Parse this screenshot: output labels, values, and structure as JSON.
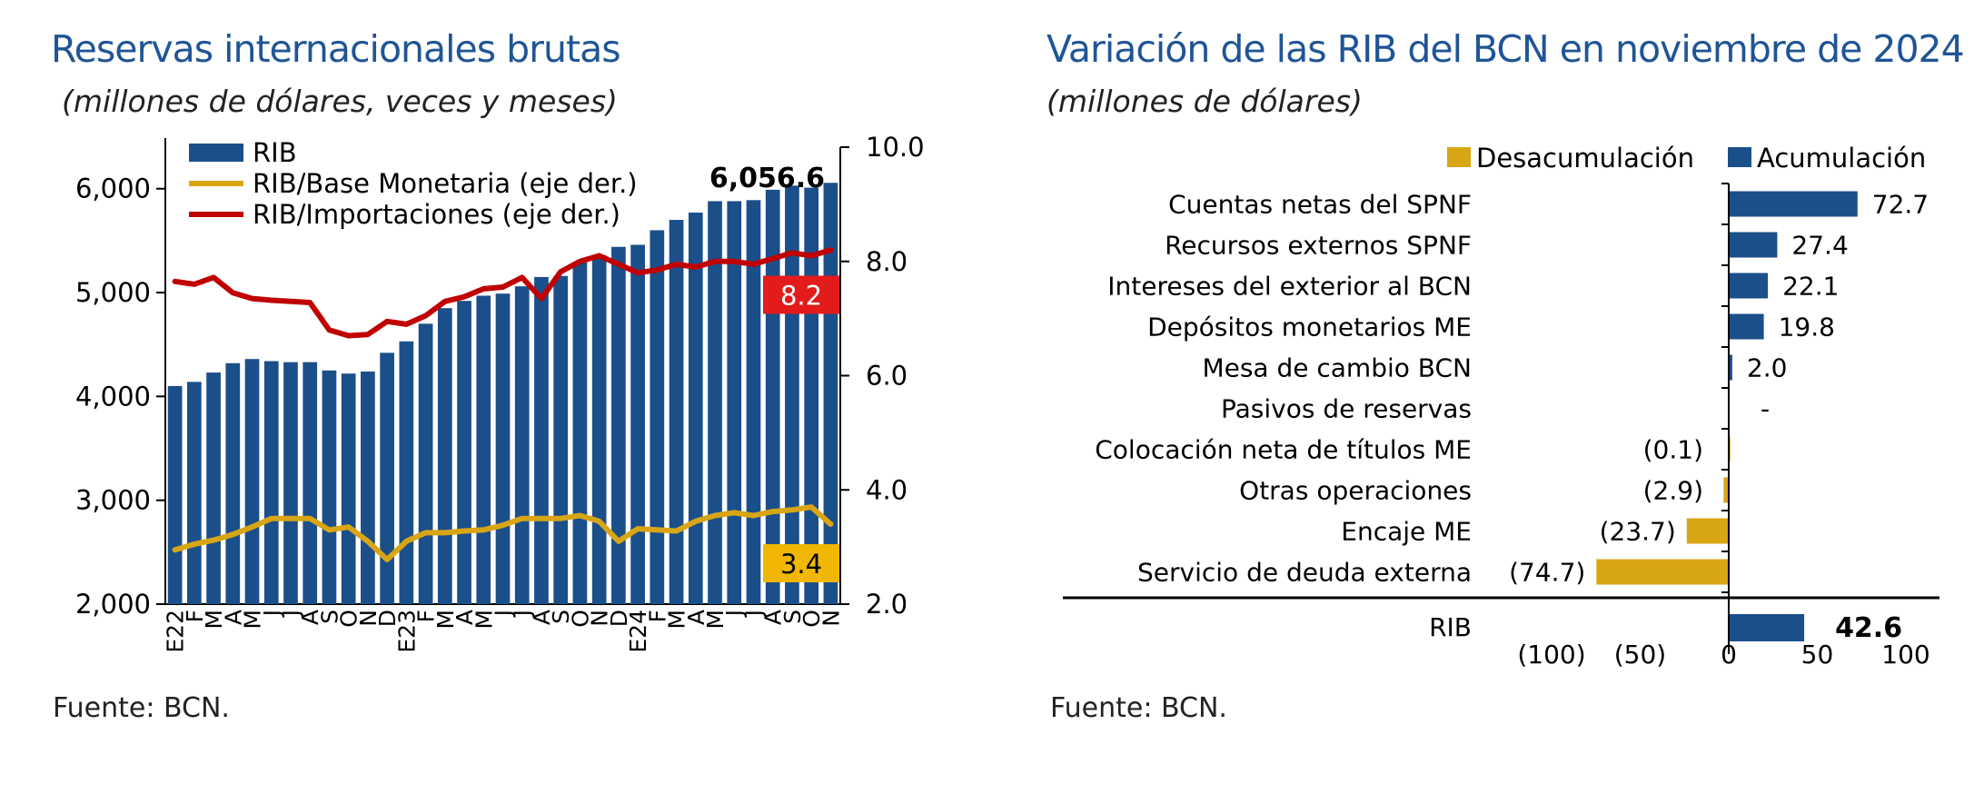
{
  "left_panel": {
    "title": "Reservas internacionales brutas",
    "subtitle": "(millones de dólares, veces y meses)",
    "source": "Fuente: BCN."
  },
  "right_panel": {
    "title": "Variación de las RIB del BCN en noviembre de 2024",
    "subtitle": "(millones de dólares)",
    "source": "Fuente: BCN."
  },
  "colors": {
    "navy": "#1b4f8a",
    "gold": "#d8a515",
    "red": "#c00000",
    "title_blue": "#1f5595"
  },
  "chart_data": [
    {
      "type": "bar",
      "x": [
        "E22",
        "F",
        "M",
        "A",
        "M",
        "J",
        "J",
        "A",
        "S",
        "O",
        "N",
        "D",
        "E23",
        "F",
        "M",
        "A",
        "M",
        "J",
        "J",
        "A",
        "S",
        "O",
        "N",
        "D",
        "E24",
        "F",
        "M",
        "A",
        "M",
        "J",
        "J",
        "A",
        "S",
        "O",
        "N"
      ],
      "series": [
        {
          "name": "RIB",
          "axis": "left",
          "type": "bar",
          "color": "#1b4f8a",
          "values": [
            4100,
            4140,
            4230,
            4320,
            4360,
            4340,
            4330,
            4330,
            4250,
            4220,
            4240,
            4420,
            4530,
            4700,
            4850,
            4920,
            4970,
            4990,
            5060,
            5150,
            5160,
            5290,
            5360,
            5440,
            5460,
            5600,
            5700,
            5770,
            5880,
            5880,
            5890,
            5990,
            6030,
            6010,
            6056.6
          ]
        },
        {
          "name": "RIB/Base Monetaria (eje der.)",
          "axis": "right",
          "type": "line",
          "color": "#d8a515",
          "values": [
            2.95,
            3.05,
            3.12,
            3.22,
            3.35,
            3.5,
            3.5,
            3.5,
            3.3,
            3.35,
            3.1,
            2.78,
            3.1,
            3.25,
            3.25,
            3.28,
            3.3,
            3.38,
            3.5,
            3.5,
            3.5,
            3.55,
            3.45,
            3.1,
            3.32,
            3.3,
            3.28,
            3.45,
            3.55,
            3.6,
            3.55,
            3.62,
            3.65,
            3.7,
            3.4
          ]
        },
        {
          "name": "RIB/Importaciones (eje der.)",
          "axis": "right",
          "type": "line",
          "color": "#c00000",
          "values": [
            7.65,
            7.6,
            7.72,
            7.45,
            7.35,
            7.32,
            7.3,
            7.28,
            6.8,
            6.7,
            6.72,
            6.95,
            6.9,
            7.05,
            7.3,
            7.38,
            7.52,
            7.55,
            7.72,
            7.35,
            7.82,
            8.0,
            8.1,
            7.95,
            7.8,
            7.85,
            7.95,
            7.9,
            8.0,
            8.0,
            7.95,
            8.05,
            8.15,
            8.1,
            8.2
          ]
        }
      ],
      "left_axis": {
        "ylim": [
          2000,
          6400
        ],
        "ticks": [
          2000,
          3000,
          4000,
          5000,
          6000
        ],
        "tick_labels": [
          "2,000",
          "3,000",
          "4,000",
          "5,000",
          "6,000"
        ]
      },
      "right_axis": {
        "ylim": [
          2.0,
          10.0
        ],
        "ticks": [
          2.0,
          4.0,
          6.0,
          8.0,
          10.0
        ],
        "tick_labels": [
          "2.0",
          "4.0",
          "6.0",
          "8.0",
          "10.0"
        ]
      },
      "annotations": {
        "rib_last": "6,056.6",
        "imports_last": "8.2",
        "base_last": "3.4"
      },
      "legend_placement": "top-left",
      "grid": false
    },
    {
      "type": "bar",
      "orientation": "horizontal",
      "categories": [
        "Cuentas netas del SPNF",
        "Recursos externos SPNF",
        "Intereses del exterior al BCN",
        "Depósitos monetarios ME",
        "Mesa de cambio BCN",
        "Pasivos de reservas",
        "Colocación neta de títulos ME",
        "Otras operaciones",
        "Encaje ME",
        "Servicio de deuda externa"
      ],
      "values": [
        72.7,
        27.4,
        22.1,
        19.8,
        2.0,
        0,
        -0.1,
        -2.9,
        -23.7,
        -74.7
      ],
      "value_labels": [
        "72.7",
        "27.4",
        "22.1",
        "19.8",
        "2.0",
        "-",
        "(0.1)",
        "(2.9)",
        "(23.7)",
        "(74.7)"
      ],
      "legend": [
        {
          "name": "Desacumulación",
          "color": "#d8a515"
        },
        {
          "name": "Acumulación",
          "color": "#1b4f8a"
        }
      ],
      "total": {
        "label": "RIB",
        "value": 42.6,
        "value_label": "42.6"
      },
      "xlim": [
        -100,
        100
      ],
      "x_ticks": [
        -100,
        -50,
        0,
        50,
        100
      ],
      "x_tick_labels": [
        "(100)",
        "(50)",
        "0",
        "50",
        "100"
      ],
      "legend_placement": "top",
      "grid": false
    }
  ]
}
